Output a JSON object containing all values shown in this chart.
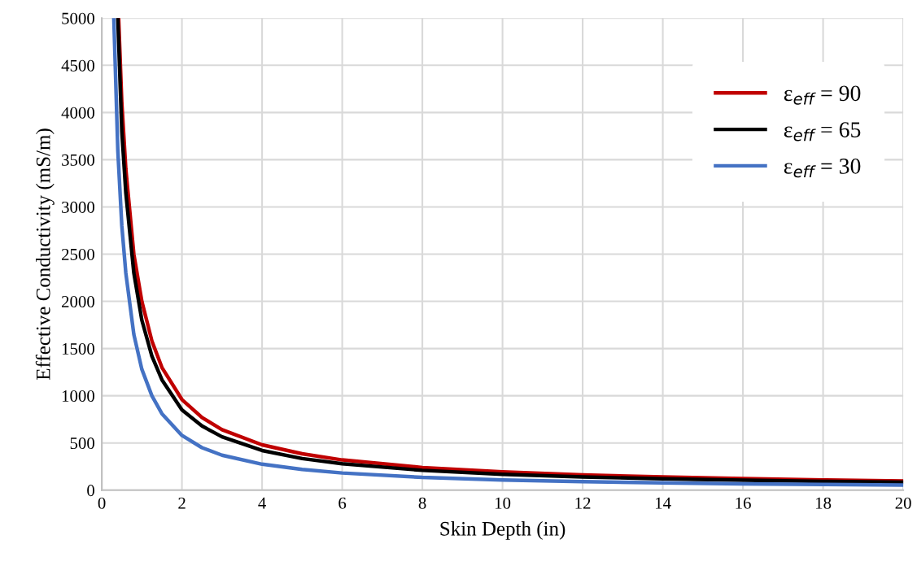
{
  "chart_data": {
    "type": "line",
    "xlabel": "Skin Depth (in)",
    "ylabel": "Effective Conductivity (mS/m)",
    "xlim": [
      0,
      20
    ],
    "ylim": [
      0,
      5000
    ],
    "xticks": [
      0,
      2,
      4,
      6,
      8,
      10,
      12,
      14,
      16,
      18,
      20
    ],
    "yticks": [
      0,
      500,
      1000,
      1500,
      2000,
      2500,
      3000,
      3500,
      4000,
      4500,
      5000
    ],
    "grid": true,
    "legend": "top right",
    "marker": "none",
    "line_style": "solid",
    "series": [
      {
        "name": "ε$_{eff}$ = 90",
        "color": "#c00000",
        "x": [
          0.42,
          0.5,
          0.6,
          0.8,
          1,
          1.25,
          1.5,
          2,
          2.5,
          3,
          4,
          5,
          6,
          8,
          10,
          12,
          14,
          16,
          18,
          20
        ],
        "values": [
          5000,
          4100,
          3400,
          2500,
          2000,
          1580,
          1300,
          960,
          770,
          640,
          480,
          385,
          320,
          240,
          195,
          162,
          140,
          122,
          108,
          98
        ]
      },
      {
        "name": "ε$_{eff}$ = 65",
        "color": "#000000",
        "x": [
          0.4,
          0.5,
          0.6,
          0.8,
          1,
          1.25,
          1.5,
          2,
          2.5,
          3,
          4,
          5,
          6,
          8,
          10,
          12,
          14,
          16,
          18,
          20
        ],
        "values": [
          5000,
          3800,
          3150,
          2300,
          1800,
          1420,
          1170,
          850,
          680,
          565,
          420,
          335,
          280,
          210,
          168,
          140,
          120,
          105,
          93,
          84
        ]
      },
      {
        "name": "ε$_{eff}$ = 30",
        "color": "#4472c4",
        "x": [
          0.3,
          0.4,
          0.5,
          0.6,
          0.8,
          1,
          1.25,
          1.5,
          2,
          2.5,
          3,
          4,
          5,
          6,
          8,
          10,
          12,
          14,
          16,
          18,
          20
        ],
        "values": [
          5000,
          3600,
          2800,
          2300,
          1650,
          1280,
          1000,
          810,
          580,
          450,
          370,
          275,
          220,
          182,
          135,
          108,
          90,
          77,
          67,
          60,
          54
        ]
      }
    ]
  }
}
